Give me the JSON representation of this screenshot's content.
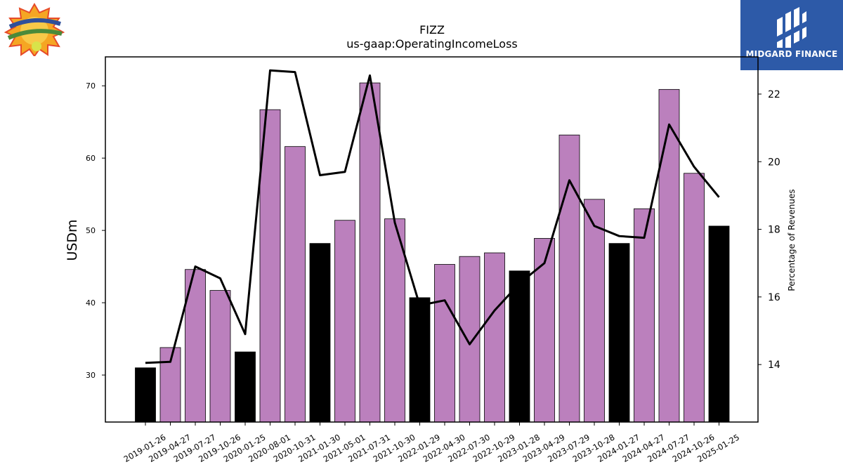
{
  "chart_data": {
    "type": "bar",
    "title": "FIZZ",
    "subtitle": "us-gaap:OperatingIncomeLoss",
    "ylabel": "USDm",
    "y2label": "Percentage of Revenues",
    "ylim": [
      23.5,
      74
    ],
    "y2lim": [
      12.3,
      23.1
    ],
    "yticks": [
      30,
      40,
      50,
      60,
      70
    ],
    "y2ticks": [
      14,
      16,
      18,
      20,
      22
    ],
    "categories": [
      "2019-01-26",
      "2019-04-27",
      "2019-07-27",
      "2019-10-26",
      "2020-01-25",
      "2020-08-01",
      "2020-10-31",
      "2021-01-30",
      "2021-05-01",
      "2021-07-31",
      "2021-10-30",
      "2022-01-29",
      "2022-04-30",
      "2022-07-30",
      "2022-10-29",
      "2023-01-28",
      "2023-04-29",
      "2023-07-29",
      "2023-10-28",
      "2024-01-27",
      "2024-04-27",
      "2024-07-27",
      "2024-10-26",
      "2025-01-25"
    ],
    "series": [
      {
        "type": "bar",
        "values": [
          31.0,
          33.8,
          44.6,
          41.7,
          33.2,
          66.7,
          61.6,
          48.2,
          51.4,
          70.4,
          51.6,
          40.7,
          45.3,
          46.4,
          46.9,
          44.4,
          48.9,
          63.2,
          54.3,
          48.2,
          53.0,
          69.5,
          57.9,
          50.6
        ],
        "colors": [
          "#000000",
          "#bb80bd",
          "#bb80bd",
          "#bb80bd",
          "#000000",
          "#bb80bd",
          "#bb80bd",
          "#000000",
          "#bb80bd",
          "#bb80bd",
          "#bb80bd",
          "#000000",
          "#bb80bd",
          "#bb80bd",
          "#bb80bd",
          "#000000",
          "#bb80bd",
          "#bb80bd",
          "#bb80bd",
          "#000000",
          "#bb80bd",
          "#bb80bd",
          "#bb80bd",
          "#000000"
        ]
      },
      {
        "type": "line",
        "axis": "right",
        "values": [
          14.05,
          14.08,
          16.9,
          16.55,
          14.9,
          22.7,
          22.65,
          19.6,
          19.7,
          22.55,
          18.2,
          15.75,
          15.9,
          14.6,
          15.6,
          16.4,
          17.0,
          19.45,
          18.1,
          17.8,
          17.75,
          21.1,
          19.85,
          18.95
        ],
        "color": "#000000"
      }
    ],
    "grid": false
  },
  "branding": {
    "right_logo_text": "MIDGARD FINANCE",
    "right_logo_bg": "#2d5aa8"
  }
}
